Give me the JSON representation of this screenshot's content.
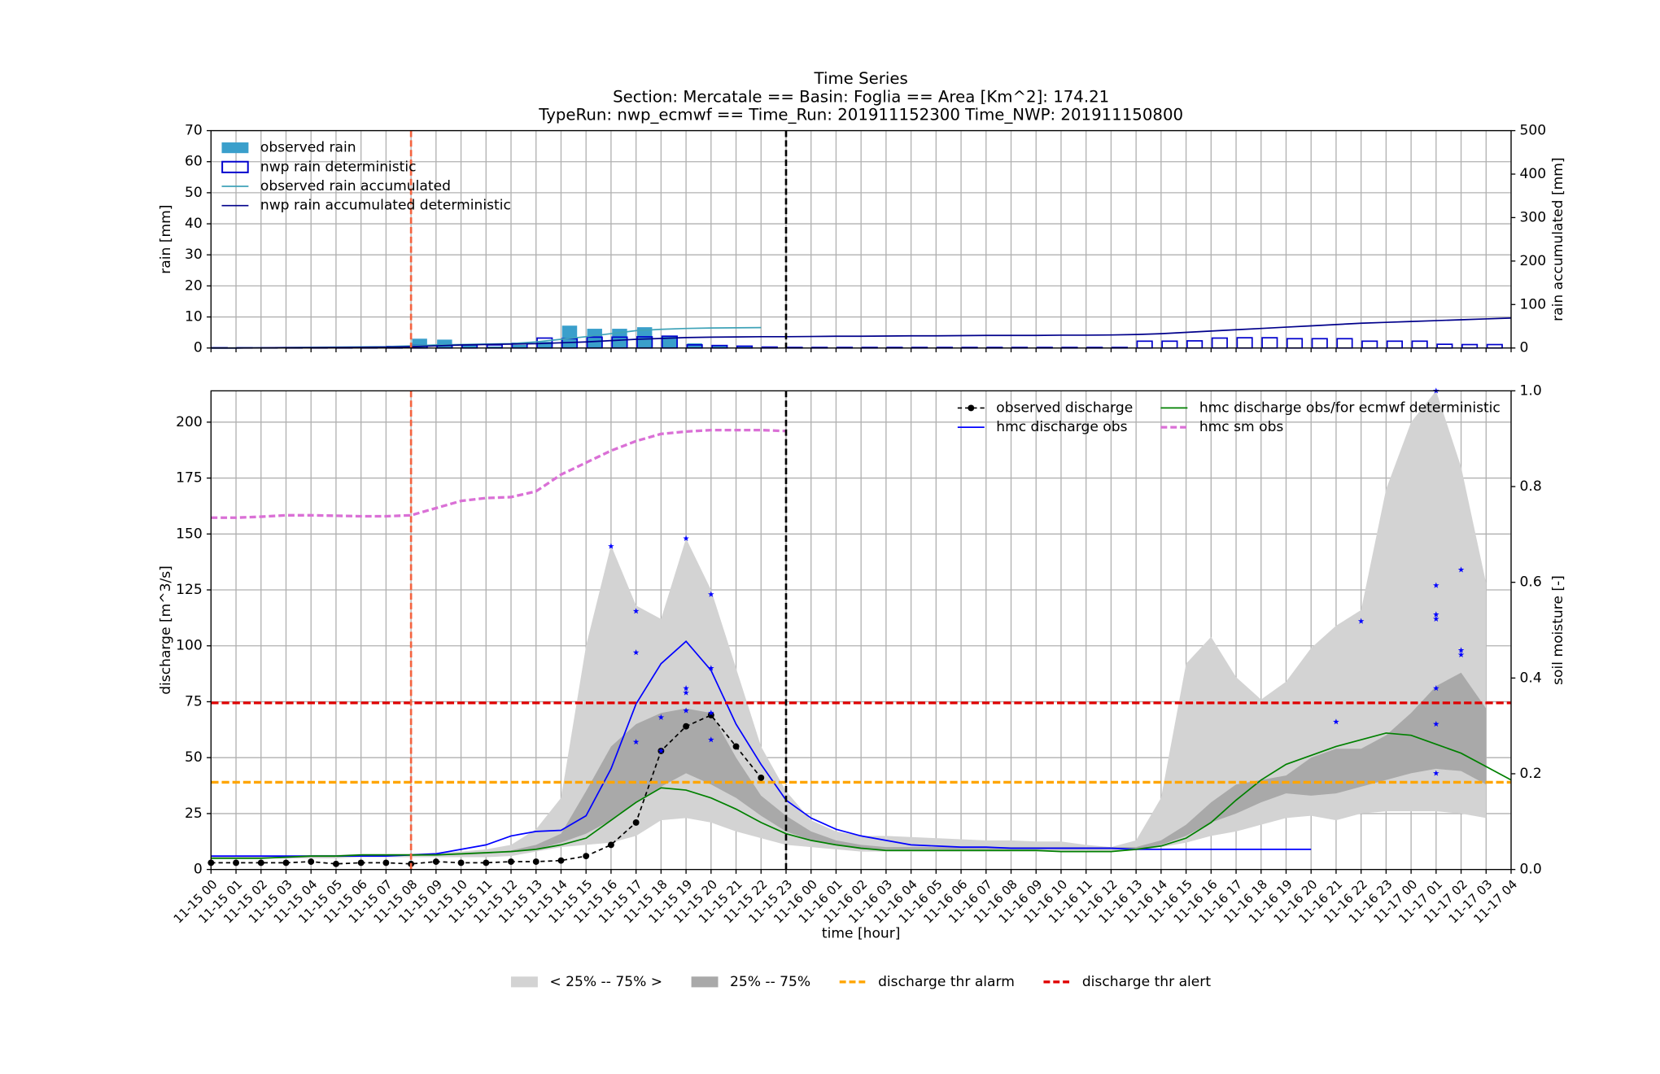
{
  "chart_data": [
    {
      "type": "bar",
      "title": "Time Series",
      "subtitle": [
        "Section: Mercatale == Basin: Foglia == Area [Km^2]: 174.21",
        "TypeRun: nwp_ecmwf == Time_Run: 201911152300 Time_NWP: 201911150800"
      ],
      "ylabel": "rain [mm]",
      "y2label": "rain accumulated [mm]",
      "ylim": [
        0,
        70
      ],
      "yticks": [
        0,
        10,
        20,
        30,
        40,
        50,
        60,
        70
      ],
      "y2lim": [
        0,
        500
      ],
      "y2ticks": [
        0,
        100,
        200,
        300,
        400,
        500
      ],
      "grid": true,
      "legend": "upper left",
      "series": [
        {
          "name": "observed rain",
          "color": "#3a9fcb",
          "style": "bar",
          "values": [
            0,
            0,
            0,
            0,
            0,
            0,
            0,
            0.5,
            3,
            2.7,
            1,
            0.5,
            1,
            2,
            7.2,
            6.2,
            6.2,
            6.7,
            4,
            1.5,
            0.8,
            0.5,
            0,
            null,
            null,
            null,
            null,
            null,
            null,
            null,
            null,
            null,
            null,
            null,
            null,
            null,
            null,
            null,
            null,
            null,
            null,
            null,
            null,
            null,
            null,
            null,
            null,
            null,
            null,
            null,
            null,
            null,
            null
          ]
        },
        {
          "name": "nwp rain deterministic",
          "color": "#0000cd",
          "style": "hollow-bar",
          "values": [
            0.1,
            0.1,
            0.1,
            0.1,
            0.1,
            0.1,
            0.1,
            0.5,
            0.8,
            1,
            1,
            1,
            1.5,
            3.2,
            3,
            3.5,
            3.5,
            3.6,
            3.8,
            1,
            0.8,
            0.6,
            0.3,
            0.2,
            0.2,
            0.2,
            0.2,
            0.2,
            0.2,
            0.2,
            0.2,
            0.2,
            0.2,
            0.2,
            0.2,
            0.2,
            0.2,
            2.2,
            2.2,
            2.3,
            3.2,
            3.3,
            3.3,
            3,
            3,
            3,
            2.2,
            2.2,
            2.2,
            1.2,
            1.1,
            1.1,
            0
          ]
        },
        {
          "name": "observed rain accumulated",
          "color": "#3fa3b8",
          "style": "line",
          "axis": "y2",
          "values": [
            0,
            0,
            0.5,
            1,
            1.5,
            2,
            2.5,
            3,
            5,
            7,
            8,
            9,
            10,
            14,
            20,
            26,
            33,
            40,
            43,
            45,
            46,
            46.5,
            47,
            null,
            null,
            null,
            null,
            null,
            null,
            null,
            null,
            null,
            null,
            null,
            null,
            null,
            null,
            null,
            null,
            null,
            null,
            null,
            null,
            null,
            null,
            null,
            null,
            null,
            null,
            null,
            null,
            null,
            null
          ]
        },
        {
          "name": "nwp rain accumulated deterministic",
          "color": "#00008b",
          "style": "line",
          "axis": "y2",
          "values": [
            0,
            0,
            0.5,
            1,
            1,
            1.2,
            1.5,
            2,
            3,
            5,
            7,
            8,
            9,
            10,
            12,
            14,
            17,
            20,
            22,
            24,
            25,
            25.5,
            26,
            26,
            26.5,
            27,
            27,
            27.5,
            28,
            28,
            28.5,
            29,
            29,
            29,
            29.5,
            29.5,
            30,
            31,
            33,
            36,
            39,
            42,
            45,
            48,
            51,
            54,
            57,
            59,
            61,
            63,
            65,
            67,
            69
          ]
        }
      ]
    },
    {
      "type": "line",
      "xlabel": "time [hour]",
      "ylabel": "discharge [m^3/s]",
      "y2label": "soil moisture [-]",
      "categories": [
        "11-15 00",
        "11-15 01",
        "11-15 02",
        "11-15 03",
        "11-15 04",
        "11-15 05",
        "11-15 06",
        "11-15 07",
        "11-15 08",
        "11-15 09",
        "11-15 10",
        "11-15 11",
        "11-15 12",
        "11-15 13",
        "11-15 14",
        "11-15 15",
        "11-15 16",
        "11-15 17",
        "11-15 18",
        "11-15 19",
        "11-15 20",
        "11-15 21",
        "11-15 22",
        "11-15 23",
        "11-16 00",
        "11-16 01",
        "11-16 02",
        "11-16 03",
        "11-16 04",
        "11-16 05",
        "11-16 06",
        "11-16 07",
        "11-16 08",
        "11-16 09",
        "11-16 10",
        "11-16 11",
        "11-16 12",
        "11-16 13",
        "11-16 14",
        "11-16 15",
        "11-16 16",
        "11-16 17",
        "11-16 18",
        "11-16 19",
        "11-16 20",
        "11-16 21",
        "11-16 22",
        "11-16 23",
        "11-17 00",
        "11-17 01",
        "11-17 02",
        "11-17 03",
        "11-17 04"
      ],
      "ylim": [
        0,
        214
      ],
      "yticks": [
        0,
        25,
        50,
        75,
        100,
        125,
        150,
        175,
        200
      ],
      "y2lim": [
        0,
        1
      ],
      "y2ticks": [
        {
          "value": 0,
          "label": "0.0"
        },
        {
          "value": 0.2,
          "label": "0.2"
        },
        {
          "value": 0.4,
          "label": "0.4"
        },
        {
          "value": 0.6,
          "label": "0.6"
        },
        {
          "value": 0.8,
          "label": "0.8"
        },
        {
          "value": 1,
          "label": "1.0"
        }
      ],
      "grid": true,
      "legend": "upper right",
      "legend2": "lower center",
      "series": [
        {
          "name": "observed discharge",
          "color": "#000000",
          "style": "dashed-dot",
          "values": [
            3,
            3,
            3,
            3,
            3.5,
            2.5,
            3,
            3,
            2.5,
            3.5,
            3,
            3,
            3.5,
            3.5,
            4,
            6,
            11,
            21,
            53,
            64,
            69,
            55,
            41,
            null,
            null,
            null,
            null,
            null,
            null,
            null,
            null,
            null,
            null,
            null,
            null,
            null,
            null,
            null,
            null,
            null,
            null,
            null,
            null,
            null,
            null,
            null,
            null,
            null,
            null,
            null,
            null,
            null,
            null
          ]
        },
        {
          "name": "hmc discharge obs",
          "color": "#0000ff",
          "style": "line",
          "values": [
            6,
            6,
            6,
            6,
            6,
            6,
            6,
            6,
            6.5,
            7,
            9,
            11,
            15,
            17,
            17.5,
            24,
            45,
            74,
            92,
            102,
            89,
            65,
            47,
            31,
            23,
            18,
            15,
            13,
            11,
            10.5,
            10,
            10,
            9.5,
            9.5,
            9.5,
            9.5,
            9.5,
            9,
            9,
            9,
            9,
            9,
            9,
            9,
            9,
            null,
            null,
            null,
            null,
            null,
            null,
            null,
            null
          ]
        },
        {
          "name": "hmc discharge obs/for ecmwf deterministic",
          "color": "#008000",
          "style": "line",
          "values": [
            5,
            5,
            5,
            5.5,
            6,
            6,
            6.5,
            6.5,
            6.5,
            6.5,
            7,
            7.5,
            8,
            9,
            11,
            14,
            22,
            30,
            36.5,
            35.5,
            32,
            27,
            21,
            16,
            13,
            11,
            9.5,
            8.5,
            8.5,
            8.5,
            8.5,
            8.5,
            8.5,
            8.5,
            8,
            8,
            8,
            9,
            10.5,
            14,
            21,
            31,
            40,
            47,
            51,
            55,
            58,
            61,
            60,
            56,
            52,
            46,
            40
          ]
        },
        {
          "name": "hmc sm obs",
          "color": "#da70d6",
          "style": "dashed",
          "axis": "y2",
          "values": [
            0.735,
            0.735,
            0.737,
            0.74,
            0.74,
            0.739,
            0.738,
            0.738,
            0.74,
            0.755,
            0.77,
            0.776,
            0.778,
            0.79,
            0.825,
            0.85,
            0.875,
            0.895,
            0.91,
            0.915,
            0.918,
            0.918,
            0.918,
            0.916,
            null,
            null,
            null,
            null,
            null,
            null,
            null,
            null,
            null,
            null,
            null,
            null,
            null,
            null,
            null,
            null,
            null,
            null,
            null,
            null,
            null,
            null,
            null,
            null,
            null,
            null,
            null,
            null,
            null
          ]
        }
      ],
      "bands": [
        {
          "name": "< 25% -- 75% >",
          "color": "#d3d3d3",
          "upper": [
            6,
            6,
            6,
            6,
            6.5,
            6.5,
            7,
            7,
            7,
            7.5,
            8,
            9,
            11,
            18,
            32,
            100,
            145,
            118,
            112,
            148,
            125,
            90,
            55,
            35,
            22,
            17,
            15,
            15,
            14.5,
            14,
            13.5,
            13,
            13,
            12.5,
            12.5,
            11,
            10,
            13,
            32,
            92,
            104,
            86,
            76,
            84,
            99,
            109,
            116,
            170,
            200,
            214,
            180,
            128,
            null
          ],
          "lower": [
            5,
            5,
            5,
            5,
            5,
            5,
            5.5,
            5.5,
            5.5,
            5.5,
            5.5,
            5.5,
            6,
            8,
            10,
            11,
            12,
            15,
            22,
            23,
            21,
            17,
            14,
            11,
            10,
            9,
            8,
            8,
            8,
            8,
            8,
            8,
            8,
            8,
            8,
            8,
            8,
            8.5,
            10,
            12,
            15,
            17,
            20,
            23,
            24,
            22,
            25,
            26,
            26,
            26,
            25,
            23,
            null
          ]
        },
        {
          "name": "25% -- 75%",
          "color": "#a9a9a9",
          "upper": [
            5.5,
            5.5,
            5.5,
            5.5,
            6,
            6,
            6.5,
            6.5,
            6.5,
            7,
            7,
            7.5,
            8.5,
            11,
            16,
            35,
            55,
            65,
            70,
            72,
            70,
            50,
            33,
            24,
            17,
            13,
            11,
            10,
            10,
            10,
            10,
            10,
            10,
            10,
            10,
            10,
            10,
            10,
            13,
            20,
            30,
            38,
            40,
            42,
            50,
            54,
            54,
            60,
            70,
            82,
            88,
            72,
            null
          ],
          "lower": [
            5,
            5,
            5,
            5,
            5.5,
            5.5,
            6,
            6,
            6,
            6.5,
            6.5,
            7,
            8,
            9,
            12,
            16,
            22,
            30,
            37,
            43,
            38,
            32,
            24,
            17,
            13,
            11,
            9,
            9,
            9,
            9,
            9,
            9,
            9,
            9,
            9,
            9,
            9,
            9,
            11,
            15,
            21,
            25,
            30,
            34,
            33,
            34,
            37,
            40,
            43,
            45,
            44,
            38,
            null
          ]
        }
      ],
      "thresholds": [
        {
          "name": "discharge thr alarm",
          "color": "#ffa500",
          "value": 39
        },
        {
          "name": "discharge thr alert",
          "color": "#e00000",
          "value": 74.5
        }
      ],
      "points": {
        "color": "#0000ff",
        "x": [
          "11-15 16",
          "11-15 17",
          "11-15 17",
          "11-15 17",
          "11-15 18",
          "11-15 18",
          "11-15 19",
          "11-15 19",
          "11-15 19",
          "11-15 19",
          "11-15 20",
          "11-15 20",
          "11-15 20",
          "11-15 20",
          "11-16 21",
          "11-16 22",
          "11-17 01",
          "11-17 01",
          "11-17 01",
          "11-17 01",
          "11-17 01",
          "11-17 01",
          "11-17 01",
          "11-17 02",
          "11-17 02",
          "11-17 02"
        ],
        "y": [
          144.5,
          115.5,
          97,
          57,
          68,
          53,
          148,
          81,
          79,
          71,
          123,
          90,
          70,
          58,
          66,
          111,
          214,
          127,
          114,
          112,
          81,
          65,
          43,
          134,
          98,
          96
        ]
      },
      "time_markers": [
        {
          "at": "11-15 08",
          "color": "#f4633f"
        },
        {
          "at": "11-15 23",
          "color": "#000000"
        }
      ]
    }
  ]
}
